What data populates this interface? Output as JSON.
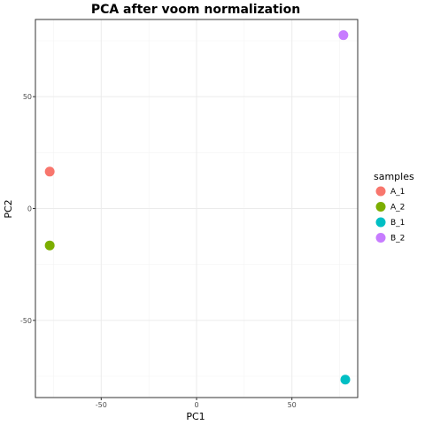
{
  "chart_data": {
    "type": "scatter",
    "title": "PCA after voom normalization",
    "xlabel": "PC1",
    "ylabel": "PC2",
    "xlim": [
      -84.5,
      84.5
    ],
    "ylim": [
      -84.5,
      84.5
    ],
    "xticks": [
      -50,
      0,
      50
    ],
    "yticks": [
      -50,
      0,
      50
    ],
    "grid": true,
    "legend_title": "samples",
    "legend_position": "right",
    "series": [
      {
        "name": "A_1",
        "color": "#F8766D",
        "x": [
          -77
        ],
        "y": [
          16.5
        ]
      },
      {
        "name": "A_2",
        "color": "#7CAE00",
        "x": [
          -77
        ],
        "y": [
          -16.5
        ]
      },
      {
        "name": "B_1",
        "color": "#00BFC4",
        "x": [
          78
        ],
        "y": [
          -76.5
        ]
      },
      {
        "name": "B_2",
        "color": "#C77CFF",
        "x": [
          77
        ],
        "y": [
          77.5
        ]
      }
    ]
  }
}
